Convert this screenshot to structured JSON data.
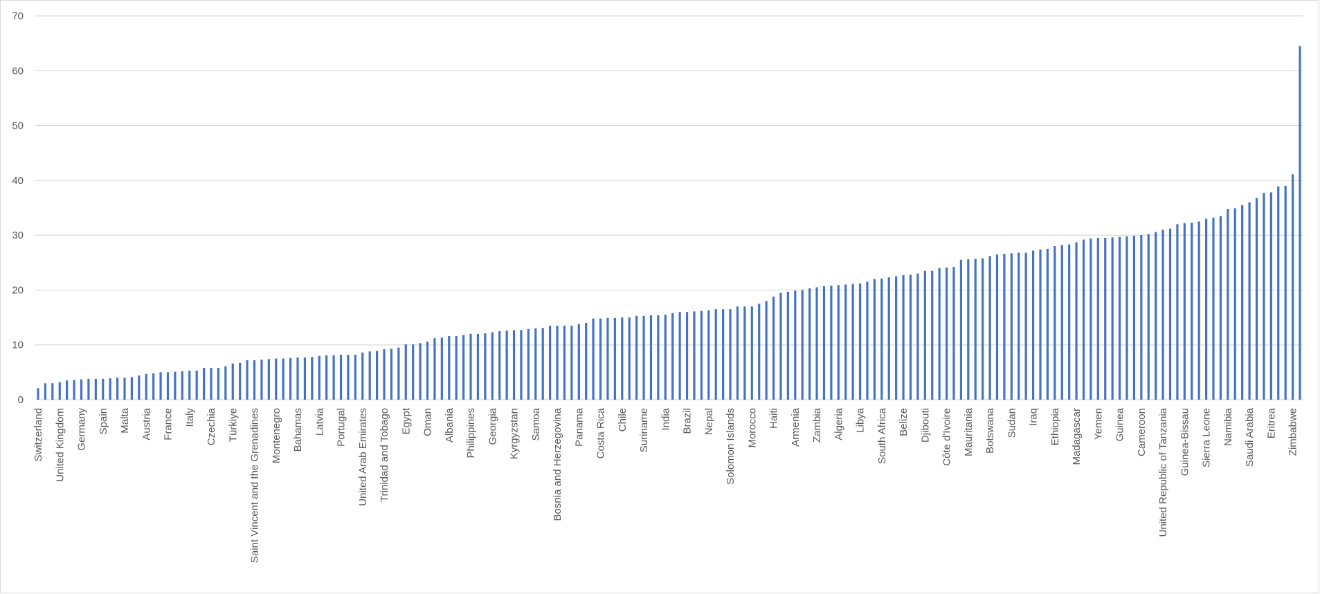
{
  "chart_data": {
    "type": "bar",
    "color": "#4472c4",
    "grid": true,
    "ylim": [
      0,
      70
    ],
    "yticks": [
      0,
      10,
      20,
      30,
      40,
      50,
      60,
      70
    ],
    "categories": [
      "Switzerland",
      null,
      null,
      "United Kingdom",
      null,
      null,
      "Germany",
      null,
      null,
      "Spain",
      null,
      null,
      "Malta",
      null,
      null,
      "Austria",
      null,
      null,
      "France",
      null,
      null,
      "Italy",
      null,
      null,
      "Czechia",
      null,
      null,
      "Türkiye",
      null,
      null,
      "Saint Vincent and the Grenadines",
      null,
      null,
      "Montenegro",
      null,
      null,
      "Bahamas",
      null,
      null,
      "Latvia",
      null,
      null,
      "Portugal",
      null,
      null,
      "United Arab Emirates",
      null,
      null,
      "Trinidad and Tobago",
      null,
      null,
      "Egypt",
      null,
      null,
      "Oman",
      null,
      null,
      "Albania",
      null,
      null,
      "Philippines",
      null,
      null,
      "Georgia",
      null,
      null,
      "Kyrgyzstan",
      null,
      null,
      "Samoa",
      null,
      null,
      "Bosnia and Herzegovina",
      null,
      null,
      "Panama",
      null,
      null,
      "Costa Rica",
      null,
      null,
      "Chile",
      null,
      null,
      "Suriname",
      null,
      null,
      "India",
      null,
      null,
      "Brazil",
      null,
      null,
      "Nepal",
      null,
      null,
      "Solomon Islands",
      null,
      null,
      "Morocco",
      null,
      null,
      "Haiti",
      null,
      null,
      "Armenia",
      null,
      null,
      "Zambia",
      null,
      null,
      "Algeria",
      null,
      null,
      "Libya",
      null,
      null,
      "South Africa",
      null,
      null,
      "Belize",
      null,
      null,
      "Djibouti",
      null,
      null,
      "Côte d'Ivoire",
      null,
      null,
      "Mauritania",
      null,
      null,
      "Botswana",
      null,
      null,
      "Sudan",
      null,
      null,
      "Iraq",
      null,
      null,
      "Ethiopia",
      null,
      null,
      "Madagascar",
      null,
      null,
      "Yemen",
      null,
      null,
      "Guinea",
      null,
      null,
      "Cameroon",
      null,
      null,
      "United Republic of Tanzania",
      null,
      null,
      "Guinea-Bissau",
      null,
      null,
      "Sierra Leone",
      null,
      null,
      "Namibia",
      null,
      null,
      "Saudi Arabia",
      null,
      null,
      "Eritrea",
      null,
      null,
      "Zimbabwe",
      null
    ],
    "values": [
      2.1,
      3.0,
      3.0,
      3.2,
      3.5,
      3.6,
      3.7,
      3.8,
      3.8,
      3.8,
      3.9,
      4.0,
      4.0,
      4.1,
      4.4,
      4.7,
      4.8,
      5.0,
      5.0,
      5.1,
      5.2,
      5.3,
      5.3,
      5.8,
      5.8,
      5.8,
      6.1,
      6.6,
      6.7,
      7.2,
      7.2,
      7.3,
      7.4,
      7.5,
      7.5,
      7.6,
      7.7,
      7.7,
      7.8,
      8.0,
      8.1,
      8.1,
      8.2,
      8.2,
      8.2,
      8.6,
      8.8,
      8.9,
      9.2,
      9.3,
      9.5,
      10.1,
      10.1,
      10.3,
      10.6,
      11.2,
      11.3,
      11.6,
      11.6,
      11.8,
      12.0,
      12.0,
      12.1,
      12.3,
      12.5,
      12.6,
      12.7,
      12.7,
      12.9,
      13.0,
      13.1,
      13.5,
      13.5,
      13.5,
      13.5,
      13.8,
      14.0,
      14.8,
      14.8,
      14.9,
      14.9,
      15.0,
      15.0,
      15.3,
      15.3,
      15.4,
      15.4,
      15.5,
      15.8,
      16.0,
      16.0,
      16.1,
      16.2,
      16.3,
      16.5,
      16.5,
      16.5,
      17.0,
      17.0,
      17.0,
      17.5,
      18.0,
      18.8,
      19.5,
      19.7,
      19.9,
      20.0,
      20.3,
      20.5,
      20.7,
      20.8,
      20.9,
      21.0,
      21.1,
      21.2,
      21.5,
      22.0,
      22.1,
      22.3,
      22.5,
      22.7,
      22.8,
      23.0,
      23.5,
      23.5,
      24.0,
      24.1,
      24.2,
      25.5,
      25.6,
      25.7,
      25.8,
      26.2,
      26.5,
      26.6,
      26.7,
      26.8,
      26.8,
      27.2,
      27.4,
      27.5,
      28.0,
      28.2,
      28.3,
      28.7,
      29.2,
      29.4,
      29.5,
      29.5,
      29.6,
      29.7,
      29.8,
      29.9,
      30.0,
      30.2,
      30.6,
      31.0,
      31.2,
      32.0,
      32.2,
      32.3,
      32.5,
      33.0,
      33.2,
      33.5,
      34.8,
      34.9,
      35.5,
      36.0,
      36.8,
      37.7,
      37.8,
      38.9,
      39.0,
      41.1,
      64.5
    ]
  }
}
